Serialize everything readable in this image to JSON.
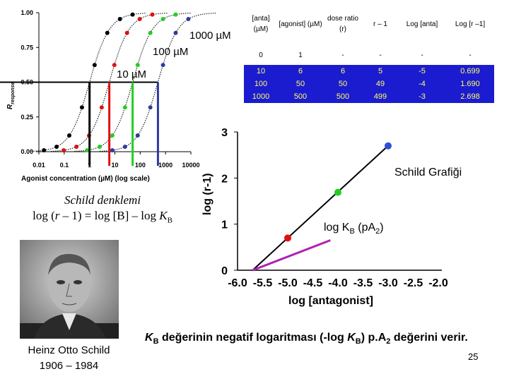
{
  "slide": {
    "number": "25",
    "footer_note": "K_B değerinin negatif logaritması (-log K_B) p.A_2 değerini verir."
  },
  "dose_response_chart": {
    "type": "line",
    "xlabel": "Agonist concentration (µM) (log scale)",
    "ylabel": "R_response",
    "x_ticks": [
      "0.01",
      "0.1",
      "1",
      "10",
      "100",
      "1000",
      "10000"
    ],
    "y_ticks": [
      "1.00",
      "0.75",
      "0.50",
      "0.25",
      "0.00"
    ],
    "series": [
      {
        "name": "",
        "color": "#000000",
        "ec50_log": 0
      },
      {
        "name": "10 µM",
        "color": "#e01010",
        "ec50_log": 0.78
      },
      {
        "name": "100 µM",
        "color": "#20d020",
        "ec50_log": 1.7
      },
      {
        "name": "1000 µM",
        "color": "#2f3b9e",
        "ec50_log": 2.7
      }
    ],
    "labels": {
      "s1": "10 µM",
      "s2": "100 µM",
      "s3": "1000 µM"
    }
  },
  "table": {
    "headers": [
      "[anta] (µM)",
      "[agonist] (µM)",
      "dose ratio (r)",
      "r – 1",
      "Log [anta]",
      "Log [r –1]"
    ],
    "rows": [
      [
        "0",
        "1",
        "-",
        "-",
        "-",
        "-"
      ],
      [
        "10",
        "6",
        "6",
        "5",
        "-5",
        "0.699"
      ],
      [
        "100",
        "50",
        "50",
        "49",
        "-4",
        "1.690"
      ],
      [
        "1000",
        "500",
        "500",
        "499",
        "-3",
        "2.698"
      ]
    ]
  },
  "schild_chart": {
    "type": "scatter",
    "title": "Schild Grafiği",
    "xlabel": "log [antagonist]",
    "ylabel": "log (r-1)",
    "x_ticks": [
      "-6.0",
      "-5.5",
      "-5.0",
      "-4.5",
      "-4.0",
      "-3.5",
      "-3.0",
      "-2.5",
      "-2.0"
    ],
    "y_ticks": [
      "3",
      "2",
      "1",
      "0"
    ],
    "xlim": [
      -6.0,
      -2.0
    ],
    "ylim": [
      0,
      3
    ],
    "points": [
      {
        "x": -5,
        "y": 0.699,
        "color": "#e01010"
      },
      {
        "x": -4,
        "y": 1.69,
        "color": "#20d020"
      },
      {
        "x": -3,
        "y": 2.698,
        "color": "#2d4fd8"
      }
    ],
    "regression": {
      "x": [
        -5.7,
        -2.95
      ],
      "y": [
        0,
        2.75
      ]
    },
    "pa2_segment": {
      "x": [
        -5.7,
        -4.15
      ],
      "y": [
        0,
        0.65
      ],
      "color": "#b020b0"
    },
    "annotation": "log K_B (pA_2)"
  },
  "equation": {
    "line1": "Schild denklemi",
    "line2": "log (r – 1) = log [B] – log K_B"
  },
  "portrait": {
    "name": "Heinz Otto Schild",
    "years": "1906 – 1984"
  }
}
